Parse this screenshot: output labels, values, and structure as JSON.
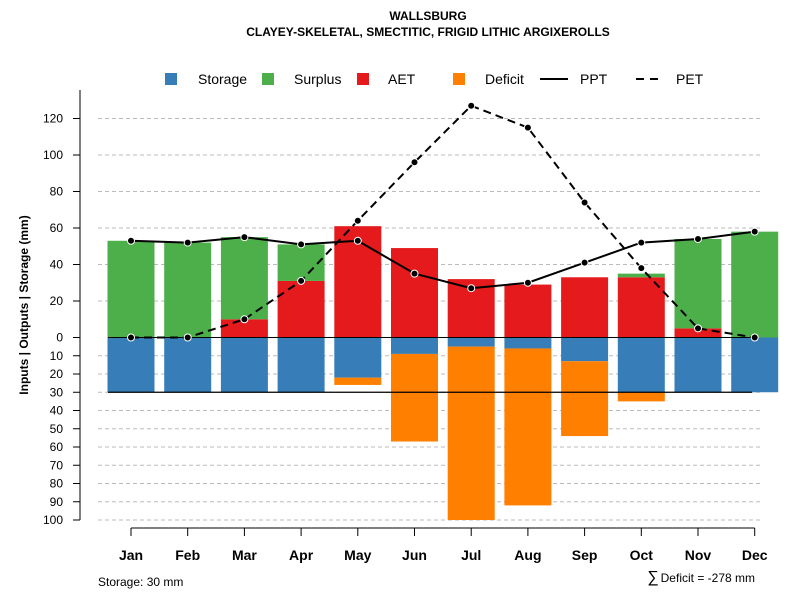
{
  "chart_data": {
    "type": "bar",
    "title": "WALLSBURG",
    "subtitle": "CLAYEY-SKELETAL, SMECTITIC, FRIGID LITHIC ARGIXEROLLS",
    "ylabel": "Inputs | Outputs | Storage     (mm)",
    "xlabel": "",
    "categories": [
      "Jan",
      "Feb",
      "Mar",
      "Apr",
      "May",
      "Jun",
      "Jul",
      "Aug",
      "Sep",
      "Oct",
      "Nov",
      "Dec"
    ],
    "upper_ylim": [
      0,
      130
    ],
    "upper_ticks": [
      0,
      20,
      40,
      60,
      80,
      100,
      120
    ],
    "lower_ylim": [
      0,
      100
    ],
    "lower_ticks": [
      0,
      10,
      20,
      30,
      40,
      50,
      60,
      70,
      80,
      90,
      100
    ],
    "legend": [
      {
        "key": "storage",
        "label": "Storage",
        "type": "box"
      },
      {
        "key": "surplus",
        "label": "Surplus",
        "type": "box"
      },
      {
        "key": "aet",
        "label": "AET",
        "type": "box"
      },
      {
        "key": "deficit",
        "label": "Deficit",
        "type": "box"
      },
      {
        "key": "ppt",
        "label": "PPT",
        "type": "solid"
      },
      {
        "key": "pet",
        "label": "PET",
        "type": "dashed"
      }
    ],
    "colors": {
      "storage": "#377EB8",
      "surplus": "#4DAF4A",
      "aet": "#E41A1C",
      "deficit": "#FF7F00",
      "line": "#000000",
      "grid": "#bbbbbb"
    },
    "series": [
      {
        "name": "AET",
        "values": [
          0,
          0,
          10,
          31,
          61,
          49,
          32,
          29,
          33,
          33,
          5,
          0
        ]
      },
      {
        "name": "Surplus",
        "values": [
          53,
          52,
          45,
          20,
          0,
          0,
          0,
          0,
          0,
          2,
          49,
          58
        ]
      },
      {
        "name": "Storage",
        "values": [
          30,
          30,
          30,
          30,
          22,
          9,
          5,
          6,
          13,
          30,
          30,
          30
        ]
      },
      {
        "name": "Deficit",
        "values": [
          0,
          0,
          0,
          0,
          4,
          48,
          95,
          86,
          41,
          5,
          0,
          0
        ]
      },
      {
        "name": "PPT",
        "values": [
          53,
          52,
          55,
          51,
          53,
          35,
          27,
          30,
          41,
          52,
          54,
          58
        ]
      },
      {
        "name": "PET",
        "values": [
          0,
          0,
          10,
          31,
          64,
          96,
          127,
          115,
          74,
          38,
          5,
          0
        ]
      }
    ],
    "storage_capacity": 30,
    "footer_left": "Storage: 30 mm",
    "footer_right_symbol": "∑",
    "footer_right": "Deficit = -278 mm"
  }
}
